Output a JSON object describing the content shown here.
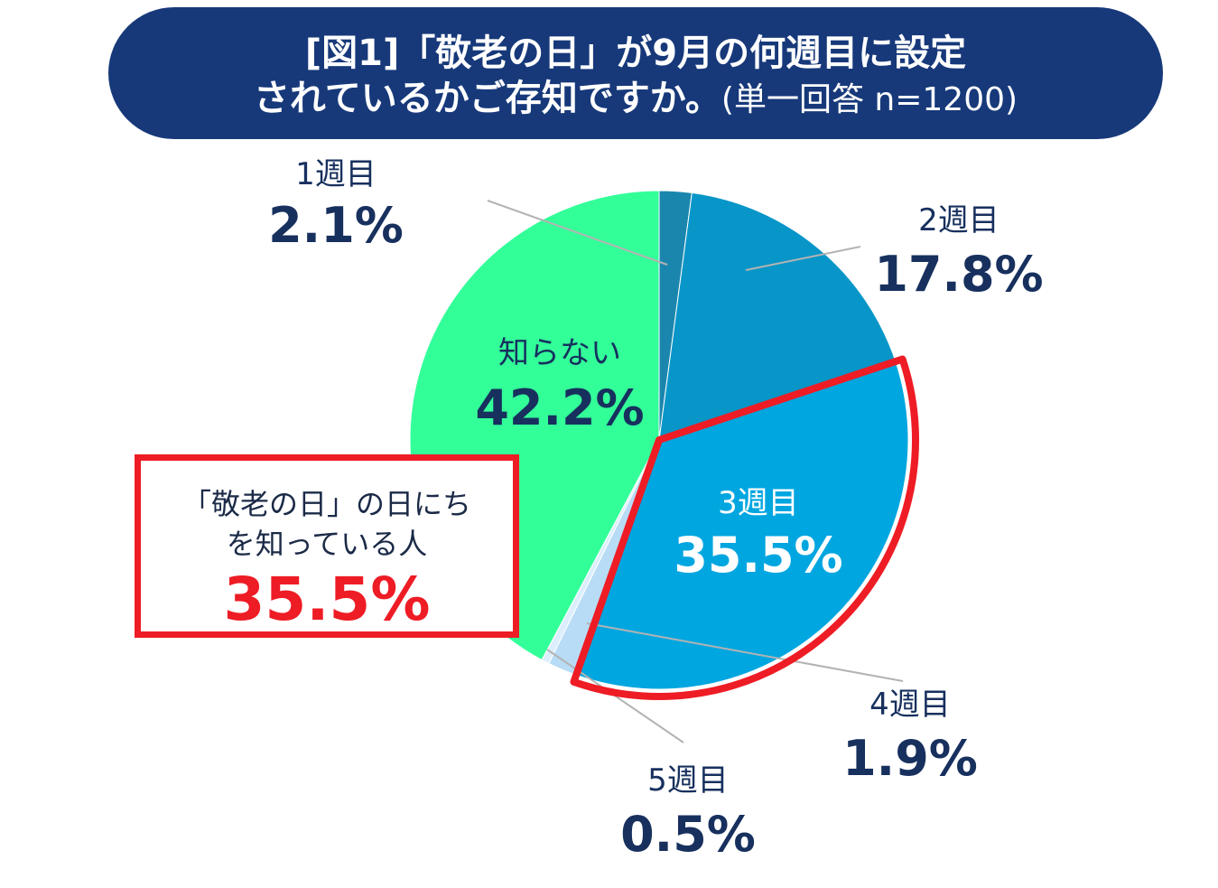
{
  "title": {
    "line1": "[図1]「敬老の日」が9月の何週目に設定",
    "line2_main": "されているかご存知ですか。",
    "line2_sub": "(単一回答 n=1200)"
  },
  "chart_data": {
    "type": "pie",
    "title": "[図1]「敬老の日」が9月の何週目に設定されているかご存知ですか。(単一回答 n=1200)",
    "slices": [
      {
        "label": "1週目",
        "value": 2.1,
        "display": "2.1%",
        "color": "#1b86ad"
      },
      {
        "label": "2週目",
        "value": 17.8,
        "display": "17.8%",
        "color": "#0896c8"
      },
      {
        "label": "3週目",
        "value": 35.5,
        "display": "35.5%",
        "color": "#00a6e0",
        "highlighted": true
      },
      {
        "label": "4週目",
        "value": 1.9,
        "display": "1.9%",
        "color": "#b8dcf5"
      },
      {
        "label": "5週目",
        "value": 0.5,
        "display": "0.5%",
        "color": "#dceefc"
      },
      {
        "label": "知らない",
        "value": 42.2,
        "display": "42.2%",
        "color": "#33ff99"
      }
    ],
    "highlight_color": "#ee1c25"
  },
  "callout": {
    "line1": "「敬老の日」の日にち",
    "line2": "を知っている人",
    "value": "35.5%"
  }
}
